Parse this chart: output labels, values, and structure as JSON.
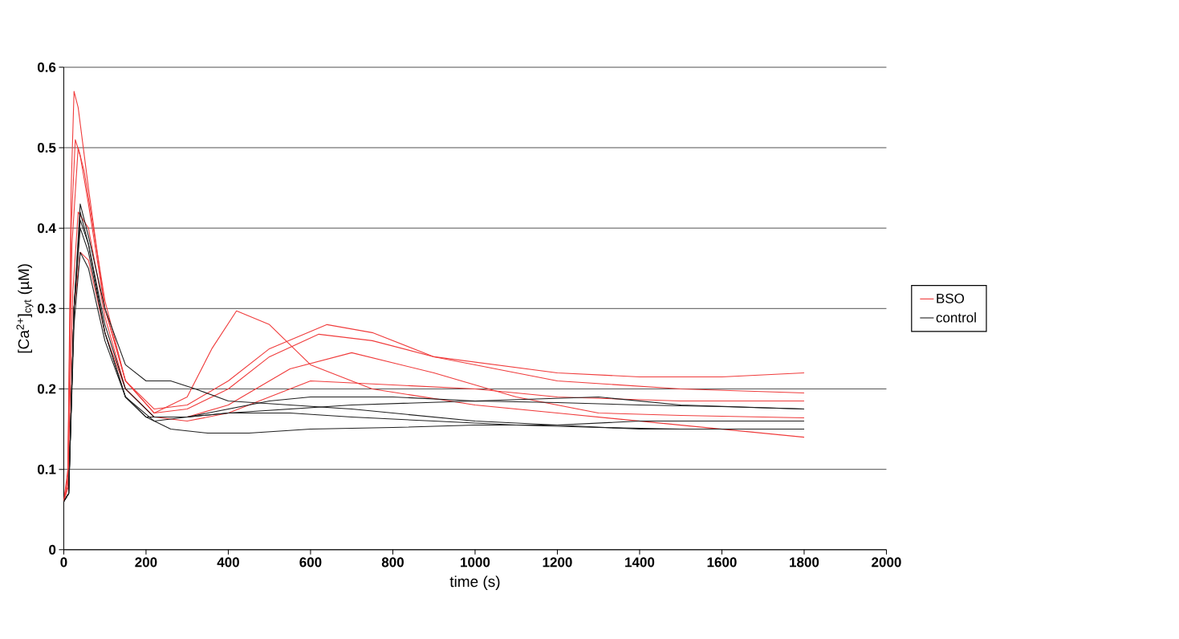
{
  "chart_data": {
    "type": "line",
    "xlabel": "time (s)",
    "ylabel": "[Ca$^{2+}$]$_{cyt}$ (µM)",
    "xlim": [
      0,
      2000
    ],
    "xticks": [
      0,
      200,
      400,
      600,
      800,
      1000,
      1200,
      1400,
      1600,
      1800,
      2000
    ],
    "ylim": [
      0,
      0.6
    ],
    "yticks": [
      0,
      0.1,
      0.2,
      0.3,
      0.4,
      0.5,
      0.6
    ],
    "grid": "y",
    "legend": "right",
    "series": [
      {
        "name": "BSO",
        "color": "#f03c3c",
        "x": [
          0,
          10,
          18,
          25,
          35,
          60,
          100,
          150,
          220,
          300,
          360,
          420,
          500,
          600,
          750,
          1000,
          1200,
          1400,
          1600,
          1800
        ],
        "values": [
          0.06,
          0.1,
          0.45,
          0.57,
          0.55,
          0.45,
          0.3,
          0.21,
          0.17,
          0.19,
          0.25,
          0.297,
          0.28,
          0.23,
          0.2,
          0.18,
          0.17,
          0.16,
          0.15,
          0.14
        ]
      },
      {
        "color": "#f03c3c",
        "x": [
          0,
          10,
          18,
          28,
          40,
          60,
          100,
          150,
          220,
          300,
          400,
          500,
          640,
          750,
          900,
          1200,
          1400,
          1600,
          1800
        ],
        "values": [
          0.06,
          0.09,
          0.4,
          0.51,
          0.49,
          0.43,
          0.3,
          0.21,
          0.175,
          0.18,
          0.21,
          0.25,
          0.28,
          0.27,
          0.24,
          0.22,
          0.215,
          0.215,
          0.22
        ]
      },
      {
        "color": "#f03c3c",
        "x": [
          0,
          10,
          20,
          35,
          50,
          100,
          150,
          220,
          300,
          400,
          500,
          620,
          750,
          900,
          1200,
          1500,
          1800
        ],
        "values": [
          0.06,
          0.09,
          0.38,
          0.5,
          0.47,
          0.31,
          0.21,
          0.17,
          0.175,
          0.2,
          0.24,
          0.268,
          0.26,
          0.24,
          0.21,
          0.2,
          0.195
        ]
      },
      {
        "color": "#f03c3c",
        "x": [
          0,
          10,
          22,
          35,
          60,
          100,
          150,
          220,
          300,
          400,
          550,
          700,
          900,
          1100,
          1300,
          1500,
          1800
        ],
        "values": [
          0.06,
          0.08,
          0.32,
          0.42,
          0.4,
          0.29,
          0.2,
          0.165,
          0.165,
          0.18,
          0.225,
          0.245,
          0.22,
          0.19,
          0.17,
          0.167,
          0.164
        ]
      },
      {
        "color": "#f03c3c",
        "x": [
          0,
          12,
          25,
          40,
          60,
          100,
          150,
          220,
          300,
          400,
          500,
          600,
          800,
          1000,
          1200,
          1500,
          1800
        ],
        "values": [
          0.06,
          0.08,
          0.3,
          0.37,
          0.36,
          0.27,
          0.2,
          0.165,
          0.16,
          0.17,
          0.19,
          0.21,
          0.205,
          0.2,
          0.19,
          0.185,
          0.185
        ]
      },
      {
        "name": "control",
        "color": "#202020",
        "x": [
          0,
          12,
          25,
          40,
          60,
          100,
          150,
          200,
          260,
          320,
          400,
          550,
          700,
          1000,
          1200,
          1400,
          1600,
          1800
        ],
        "values": [
          0.06,
          0.07,
          0.3,
          0.43,
          0.39,
          0.3,
          0.23,
          0.21,
          0.21,
          0.2,
          0.185,
          0.18,
          0.175,
          0.16,
          0.155,
          0.15,
          0.15,
          0.15
        ]
      },
      {
        "color": "#202020",
        "x": [
          0,
          12,
          25,
          40,
          60,
          100,
          150,
          200,
          260,
          350,
          450,
          600,
          800,
          1000,
          1200,
          1400,
          1600,
          1800
        ],
        "values": [
          0.06,
          0.07,
          0.3,
          0.42,
          0.38,
          0.27,
          0.19,
          0.165,
          0.15,
          0.145,
          0.145,
          0.15,
          0.152,
          0.155,
          0.155,
          0.16,
          0.16,
          0.16
        ]
      },
      {
        "color": "#202020",
        "x": [
          0,
          12,
          25,
          40,
          60,
          100,
          150,
          220,
          300,
          400,
          500,
          600,
          800,
          1000,
          1300,
          1500,
          1800
        ],
        "values": [
          0.06,
          0.07,
          0.3,
          0.41,
          0.38,
          0.28,
          0.2,
          0.165,
          0.165,
          0.175,
          0.185,
          0.19,
          0.19,
          0.185,
          0.19,
          0.18,
          0.175
        ]
      },
      {
        "color": "#202020",
        "x": [
          0,
          12,
          25,
          40,
          60,
          100,
          150,
          220,
          300,
          400,
          550,
          700,
          1000,
          1200,
          1400,
          1600,
          1800
        ],
        "values": [
          0.06,
          0.07,
          0.28,
          0.37,
          0.35,
          0.26,
          0.19,
          0.16,
          0.165,
          0.17,
          0.175,
          0.18,
          0.185,
          0.183,
          0.18,
          0.178,
          0.175
        ]
      },
      {
        "color": "#202020",
        "x": [
          0,
          12,
          25,
          40,
          60,
          100,
          150,
          200,
          300,
          400,
          550,
          700,
          900,
          1100,
          1300,
          1500,
          1800
        ],
        "values": [
          0.06,
          0.07,
          0.3,
          0.4,
          0.37,
          0.27,
          0.19,
          0.165,
          0.165,
          0.17,
          0.17,
          0.165,
          0.16,
          0.155,
          0.152,
          0.15,
          0.15
        ]
      }
    ]
  }
}
